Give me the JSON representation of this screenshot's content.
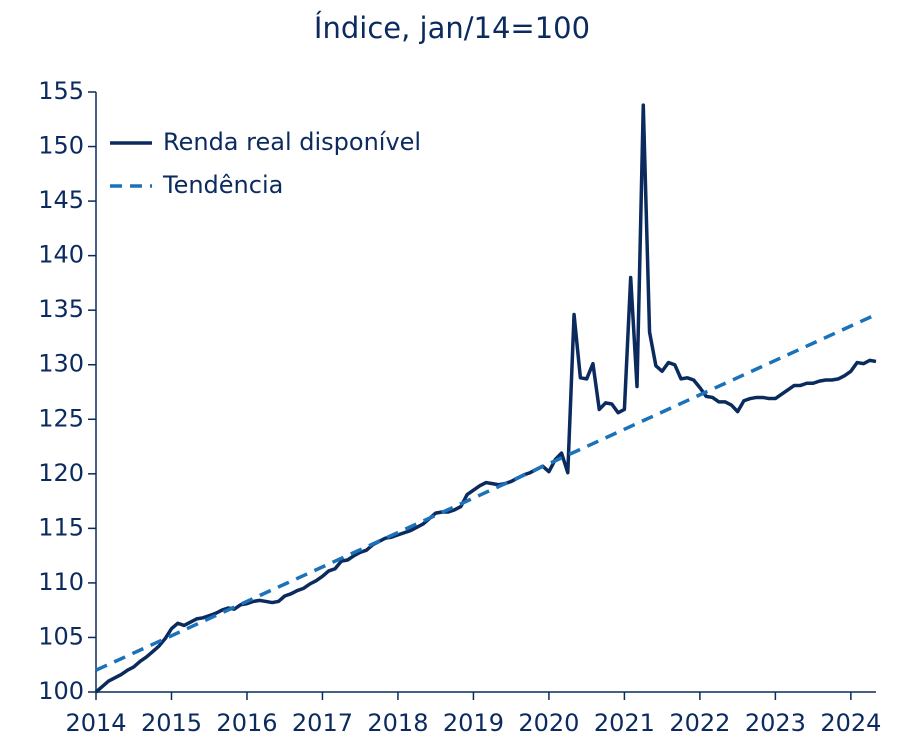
{
  "chart_data": {
    "type": "line",
    "title": "Índice, jan/14=100",
    "xlim": [
      2014,
      2024.333
    ],
    "xticks": [
      2014,
      2015,
      2016,
      2017,
      2018,
      2019,
      2020,
      2021,
      2022,
      2023,
      2024
    ],
    "ylim": [
      100,
      155
    ],
    "yticks": [
      100,
      105,
      110,
      115,
      120,
      125,
      130,
      135,
      140,
      145,
      150,
      155
    ],
    "grid": false,
    "legend": "upper-left",
    "series": [
      {
        "name": "Renda real disponível",
        "color": "#0b2a5e",
        "dashed": false,
        "x": [
          2014,
          2014.083,
          2014.167,
          2014.25,
          2014.333,
          2014.417,
          2014.5,
          2014.583,
          2014.667,
          2014.75,
          2014.833,
          2014.917,
          2015,
          2015.083,
          2015.167,
          2015.25,
          2015.333,
          2015.417,
          2015.5,
          2015.583,
          2015.667,
          2015.75,
          2015.833,
          2015.917,
          2016,
          2016.083,
          2016.167,
          2016.25,
          2016.333,
          2016.417,
          2016.5,
          2016.583,
          2016.667,
          2016.75,
          2016.833,
          2016.917,
          2017,
          2017.083,
          2017.167,
          2017.25,
          2017.333,
          2017.417,
          2017.5,
          2017.583,
          2017.667,
          2017.75,
          2017.833,
          2017.917,
          2018,
          2018.083,
          2018.167,
          2018.25,
          2018.333,
          2018.417,
          2018.5,
          2018.583,
          2018.667,
          2018.75,
          2018.833,
          2018.917,
          2019,
          2019.083,
          2019.167,
          2019.25,
          2019.333,
          2019.417,
          2019.5,
          2019.583,
          2019.667,
          2019.75,
          2019.833,
          2019.917,
          2020,
          2020.083,
          2020.167,
          2020.25,
          2020.333,
          2020.417,
          2020.5,
          2020.583,
          2020.667,
          2020.75,
          2020.833,
          2020.917,
          2021,
          2021.083,
          2021.167,
          2021.25,
          2021.333,
          2021.417,
          2021.5,
          2021.583,
          2021.667,
          2021.75,
          2021.833,
          2021.917,
          2022,
          2022.083,
          2022.167,
          2022.25,
          2022.333,
          2022.417,
          2022.5,
          2022.583,
          2022.667,
          2022.75,
          2022.833,
          2022.917,
          2023,
          2023.083,
          2023.167,
          2023.25,
          2023.333,
          2023.417,
          2023.5,
          2023.583,
          2023.667,
          2023.75,
          2023.833,
          2023.917,
          2024,
          2024.083,
          2024.167,
          2024.25,
          2024.333
        ],
        "values": [
          100,
          100.5,
          101,
          101.3,
          101.6,
          102,
          102.3,
          102.8,
          103.2,
          103.7,
          104.2,
          104.9,
          105.8,
          106.3,
          106.1,
          106.4,
          106.7,
          106.8,
          107,
          107.2,
          107.5,
          107.7,
          107.6,
          108,
          108.1,
          108.3,
          108.4,
          108.3,
          108.2,
          108.3,
          108.8,
          109,
          109.3,
          109.5,
          109.9,
          110.2,
          110.6,
          111.1,
          111.3,
          112,
          112.1,
          112.5,
          112.8,
          113,
          113.5,
          113.8,
          114.1,
          114.2,
          114.4,
          114.6,
          114.8,
          115.1,
          115.4,
          115.9,
          116.4,
          116.5,
          116.5,
          116.7,
          117,
          118.1,
          118.5,
          118.9,
          119.2,
          119.1,
          119,
          119.1,
          119.3,
          119.6,
          119.9,
          120.1,
          120.4,
          120.7,
          120.2,
          121.3,
          121.9,
          120.1,
          134.6,
          128.8,
          128.7,
          130.1,
          125.9,
          126.5,
          126.4,
          125.6,
          125.9,
          138,
          128,
          153.8,
          133,
          129.9,
          129.4,
          130.2,
          130,
          128.7,
          128.8,
          128.6,
          127.9,
          127.1,
          127,
          126.6,
          126.6,
          126.3,
          125.7,
          126.7,
          126.9,
          127,
          127,
          126.9,
          126.9,
          127.3,
          127.7,
          128.1,
          128.1,
          128.3,
          128.3,
          128.5,
          128.6,
          128.6,
          128.7,
          129,
          129.4,
          130.2,
          130.1,
          130.4,
          130.3
        ]
      },
      {
        "name": "Tendência",
        "color": "#1a72bb",
        "dashed": true,
        "x": [
          2014,
          2024.333
        ],
        "values": [
          102,
          134.6
        ]
      }
    ]
  }
}
